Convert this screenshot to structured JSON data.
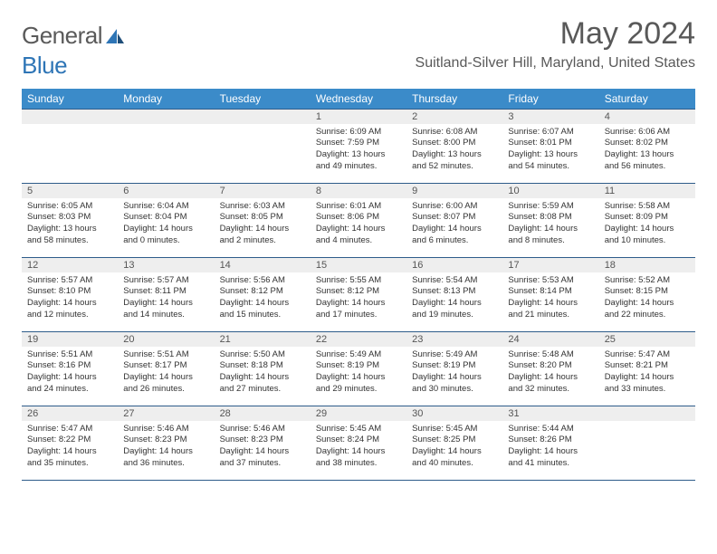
{
  "logo": {
    "word1": "General",
    "word2": "Blue"
  },
  "title": "May 2024",
  "location": "Suitland-Silver Hill, Maryland, United States",
  "headers": [
    "Sunday",
    "Monday",
    "Tuesday",
    "Wednesday",
    "Thursday",
    "Friday",
    "Saturday"
  ],
  "colors": {
    "header_bg": "#3b8bc9",
    "header_fg": "#ffffff",
    "daynum_bg": "#eeeeee",
    "border": "#2e5c8a",
    "title_fg": "#595959",
    "logo_gray": "#5a5a5a",
    "logo_blue": "#2e75b6"
  },
  "weeks": [
    [
      {
        "n": "",
        "lines": []
      },
      {
        "n": "",
        "lines": []
      },
      {
        "n": "",
        "lines": []
      },
      {
        "n": "1",
        "lines": [
          "Sunrise: 6:09 AM",
          "Sunset: 7:59 PM",
          "Daylight: 13 hours",
          "and 49 minutes."
        ]
      },
      {
        "n": "2",
        "lines": [
          "Sunrise: 6:08 AM",
          "Sunset: 8:00 PM",
          "Daylight: 13 hours",
          "and 52 minutes."
        ]
      },
      {
        "n": "3",
        "lines": [
          "Sunrise: 6:07 AM",
          "Sunset: 8:01 PM",
          "Daylight: 13 hours",
          "and 54 minutes."
        ]
      },
      {
        "n": "4",
        "lines": [
          "Sunrise: 6:06 AM",
          "Sunset: 8:02 PM",
          "Daylight: 13 hours",
          "and 56 minutes."
        ]
      }
    ],
    [
      {
        "n": "5",
        "lines": [
          "Sunrise: 6:05 AM",
          "Sunset: 8:03 PM",
          "Daylight: 13 hours",
          "and 58 minutes."
        ]
      },
      {
        "n": "6",
        "lines": [
          "Sunrise: 6:04 AM",
          "Sunset: 8:04 PM",
          "Daylight: 14 hours",
          "and 0 minutes."
        ]
      },
      {
        "n": "7",
        "lines": [
          "Sunrise: 6:03 AM",
          "Sunset: 8:05 PM",
          "Daylight: 14 hours",
          "and 2 minutes."
        ]
      },
      {
        "n": "8",
        "lines": [
          "Sunrise: 6:01 AM",
          "Sunset: 8:06 PM",
          "Daylight: 14 hours",
          "and 4 minutes."
        ]
      },
      {
        "n": "9",
        "lines": [
          "Sunrise: 6:00 AM",
          "Sunset: 8:07 PM",
          "Daylight: 14 hours",
          "and 6 minutes."
        ]
      },
      {
        "n": "10",
        "lines": [
          "Sunrise: 5:59 AM",
          "Sunset: 8:08 PM",
          "Daylight: 14 hours",
          "and 8 minutes."
        ]
      },
      {
        "n": "11",
        "lines": [
          "Sunrise: 5:58 AM",
          "Sunset: 8:09 PM",
          "Daylight: 14 hours",
          "and 10 minutes."
        ]
      }
    ],
    [
      {
        "n": "12",
        "lines": [
          "Sunrise: 5:57 AM",
          "Sunset: 8:10 PM",
          "Daylight: 14 hours",
          "and 12 minutes."
        ]
      },
      {
        "n": "13",
        "lines": [
          "Sunrise: 5:57 AM",
          "Sunset: 8:11 PM",
          "Daylight: 14 hours",
          "and 14 minutes."
        ]
      },
      {
        "n": "14",
        "lines": [
          "Sunrise: 5:56 AM",
          "Sunset: 8:12 PM",
          "Daylight: 14 hours",
          "and 15 minutes."
        ]
      },
      {
        "n": "15",
        "lines": [
          "Sunrise: 5:55 AM",
          "Sunset: 8:12 PM",
          "Daylight: 14 hours",
          "and 17 minutes."
        ]
      },
      {
        "n": "16",
        "lines": [
          "Sunrise: 5:54 AM",
          "Sunset: 8:13 PM",
          "Daylight: 14 hours",
          "and 19 minutes."
        ]
      },
      {
        "n": "17",
        "lines": [
          "Sunrise: 5:53 AM",
          "Sunset: 8:14 PM",
          "Daylight: 14 hours",
          "and 21 minutes."
        ]
      },
      {
        "n": "18",
        "lines": [
          "Sunrise: 5:52 AM",
          "Sunset: 8:15 PM",
          "Daylight: 14 hours",
          "and 22 minutes."
        ]
      }
    ],
    [
      {
        "n": "19",
        "lines": [
          "Sunrise: 5:51 AM",
          "Sunset: 8:16 PM",
          "Daylight: 14 hours",
          "and 24 minutes."
        ]
      },
      {
        "n": "20",
        "lines": [
          "Sunrise: 5:51 AM",
          "Sunset: 8:17 PM",
          "Daylight: 14 hours",
          "and 26 minutes."
        ]
      },
      {
        "n": "21",
        "lines": [
          "Sunrise: 5:50 AM",
          "Sunset: 8:18 PM",
          "Daylight: 14 hours",
          "and 27 minutes."
        ]
      },
      {
        "n": "22",
        "lines": [
          "Sunrise: 5:49 AM",
          "Sunset: 8:19 PM",
          "Daylight: 14 hours",
          "and 29 minutes."
        ]
      },
      {
        "n": "23",
        "lines": [
          "Sunrise: 5:49 AM",
          "Sunset: 8:19 PM",
          "Daylight: 14 hours",
          "and 30 minutes."
        ]
      },
      {
        "n": "24",
        "lines": [
          "Sunrise: 5:48 AM",
          "Sunset: 8:20 PM",
          "Daylight: 14 hours",
          "and 32 minutes."
        ]
      },
      {
        "n": "25",
        "lines": [
          "Sunrise: 5:47 AM",
          "Sunset: 8:21 PM",
          "Daylight: 14 hours",
          "and 33 minutes."
        ]
      }
    ],
    [
      {
        "n": "26",
        "lines": [
          "Sunrise: 5:47 AM",
          "Sunset: 8:22 PM",
          "Daylight: 14 hours",
          "and 35 minutes."
        ]
      },
      {
        "n": "27",
        "lines": [
          "Sunrise: 5:46 AM",
          "Sunset: 8:23 PM",
          "Daylight: 14 hours",
          "and 36 minutes."
        ]
      },
      {
        "n": "28",
        "lines": [
          "Sunrise: 5:46 AM",
          "Sunset: 8:23 PM",
          "Daylight: 14 hours",
          "and 37 minutes."
        ]
      },
      {
        "n": "29",
        "lines": [
          "Sunrise: 5:45 AM",
          "Sunset: 8:24 PM",
          "Daylight: 14 hours",
          "and 38 minutes."
        ]
      },
      {
        "n": "30",
        "lines": [
          "Sunrise: 5:45 AM",
          "Sunset: 8:25 PM",
          "Daylight: 14 hours",
          "and 40 minutes."
        ]
      },
      {
        "n": "31",
        "lines": [
          "Sunrise: 5:44 AM",
          "Sunset: 8:26 PM",
          "Daylight: 14 hours",
          "and 41 minutes."
        ]
      },
      {
        "n": "",
        "lines": []
      }
    ]
  ]
}
